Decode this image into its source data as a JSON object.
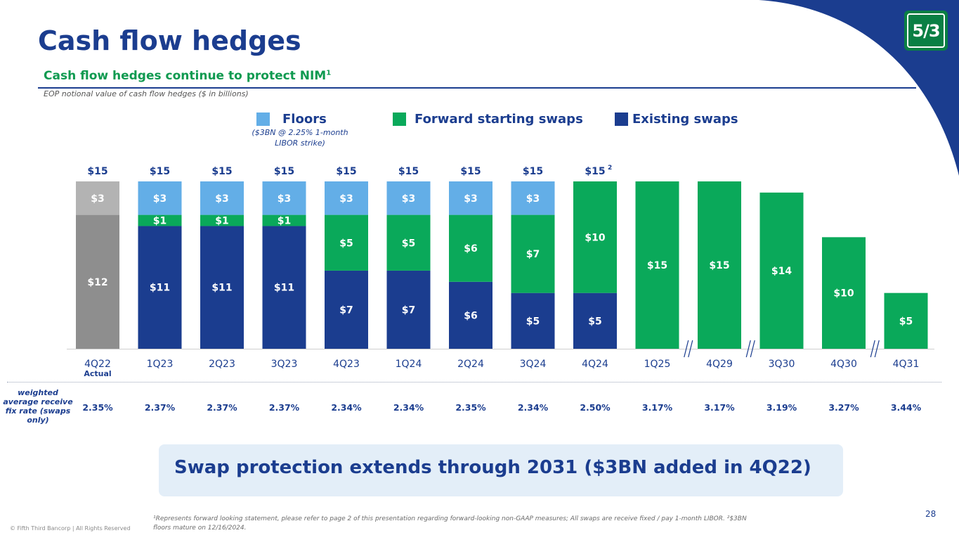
{
  "header": {
    "title": "Cash flow hedges",
    "subtitle": "Cash flow hedges continue to protect NIM",
    "subtitle_sup": "1",
    "note": "EOP notional value of cash flow hedges ($ in billions)"
  },
  "logo": {
    "text": "5/3",
    "icon": "fifth-third-logo",
    "color": "#0a7f44"
  },
  "colors": {
    "navy": "#1b3d8f",
    "green": "#0aa95a",
    "light_blue": "#63aee7",
    "gray_light": "#b3b3b3",
    "gray_dark": "#8e8e8e"
  },
  "legend": {
    "floors": "Floors",
    "floors_note": "($3BN @ 2.25% 1-month LIBOR strike)",
    "forward": "Forward starting swaps",
    "existing": "Existing swaps"
  },
  "chart_data": {
    "type": "bar",
    "stacked": true,
    "categories": [
      "4Q22",
      "1Q23",
      "2Q23",
      "3Q23",
      "4Q23",
      "1Q24",
      "2Q24",
      "3Q24",
      "4Q24",
      "1Q25",
      "4Q29",
      "3Q30",
      "4Q30",
      "4Q31"
    ],
    "category_sublabels": [
      "Actual",
      "",
      "",
      "",
      "",
      "",
      "",
      "",
      "",
      "",
      "",
      "",
      "",
      ""
    ],
    "series": [
      {
        "name": "Existing swaps",
        "values": [
          12,
          11,
          11,
          11,
          7,
          7,
          6,
          5,
          5,
          0,
          0,
          0,
          0,
          0
        ],
        "labels": [
          "$12",
          "$11",
          "$11",
          "$11",
          "$7",
          "$7",
          "$6",
          "$5",
          "$5",
          "",
          "",
          "",
          "",
          ""
        ]
      },
      {
        "name": "Forward starting swaps",
        "values": [
          0,
          1,
          1,
          1,
          5,
          5,
          6,
          7,
          10,
          15,
          15,
          14,
          10,
          5
        ],
        "labels": [
          "",
          "$1",
          "$1",
          "$1",
          "$5",
          "$5",
          "$6",
          "$7",
          "$10",
          "$15",
          "$15",
          "$14",
          "$10",
          "$5"
        ]
      },
      {
        "name": "Floors",
        "values": [
          3,
          3,
          3,
          3,
          3,
          3,
          3,
          3,
          0,
          0,
          0,
          0,
          0,
          0
        ],
        "labels": [
          "$3",
          "$3",
          "$3",
          "$3",
          "$3",
          "$3",
          "$3",
          "$3",
          "",
          "",
          "",
          "",
          "",
          ""
        ]
      }
    ],
    "totals": [
      "$15",
      "$15",
      "$15",
      "$15",
      "$15",
      "$15",
      "$15",
      "$15",
      "$15",
      "",
      "",
      "",
      "",
      ""
    ],
    "total_superscripts": [
      "",
      "",
      "",
      "",
      "",
      "",
      "",
      "",
      "2",
      "",
      "",
      "",
      "",
      ""
    ],
    "axis_breaks_after": [
      "1Q25",
      "4Q29",
      "4Q30"
    ],
    "ylim": [
      0,
      15
    ],
    "grid": false,
    "legend_position": "top",
    "rate_row_label": "weighted average receive fix rate (swaps only)",
    "rates": [
      "2.35%",
      "2.37%",
      "2.37%",
      "2.37%",
      "2.34%",
      "2.34%",
      "2.35%",
      "2.34%",
      "2.50%",
      "3.17%",
      "3.17%",
      "3.19%",
      "3.27%",
      "3.44%"
    ]
  },
  "callout": {
    "text": "Swap protection extends through 2031 ($3BN added in 4Q22)"
  },
  "footnote": "¹Represents forward looking statement, please refer to page 2 of this presentation regarding forward-looking non-GAAP measures; All swaps are receive fixed / pay 1-month LIBOR. ²$3BN floors mature on 12/16/2024.",
  "copyright": "© Fifth Third Bancorp | All Rights Reserved",
  "page_number": "28"
}
